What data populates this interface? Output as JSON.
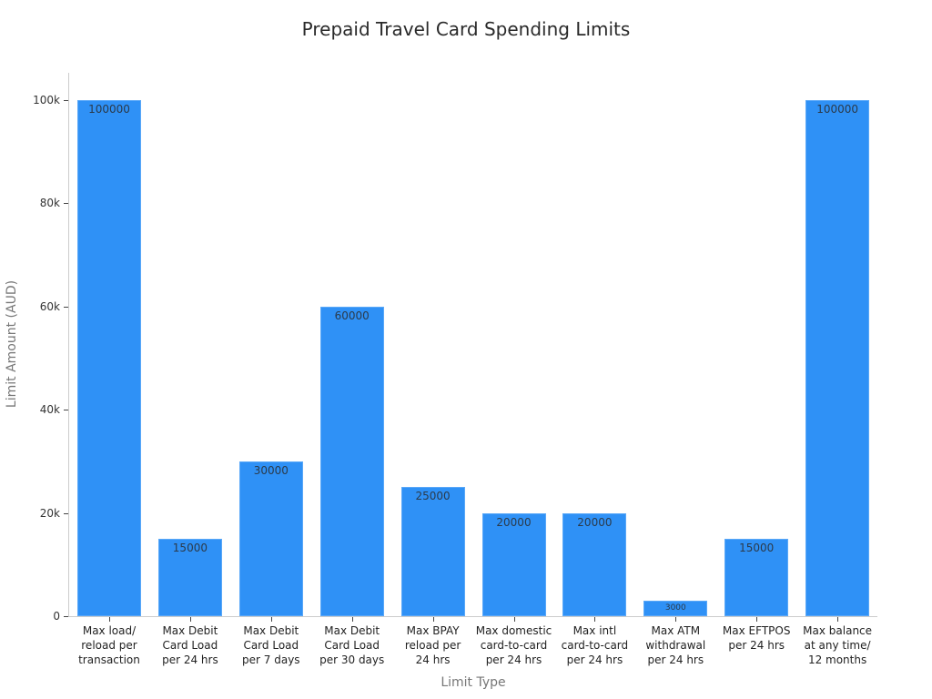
{
  "chart_data": {
    "type": "bar",
    "title": "Prepaid Travel Card Spending Limits",
    "xlabel": "Limit Type",
    "ylabel": "Limit Amount (AUD)",
    "ylim": [
      0,
      105000
    ],
    "yticks": [
      "0",
      "20k",
      "40k",
      "60k",
      "80k",
      "100k"
    ],
    "ytick_values": [
      0,
      20000,
      40000,
      60000,
      80000,
      100000
    ],
    "grid": false,
    "legend": null,
    "bar_color": "#2f91f6",
    "categories": [
      "Max load/\nreload per\ntransaction",
      "Max Debit\nCard Load\nper 24 hrs",
      "Max Debit\nCard Load\nper 7 days",
      "Max Debit\nCard Load\nper 30 days",
      "Max BPAY\nreload per\n24 hrs",
      "Max domestic\ncard-to-card\nper 24 hrs",
      "Max intl\ncard-to-card\nper 24 hrs",
      "Max ATM\nwithdrawal\nper 24 hrs",
      "Max EFTPOS\nper 24 hrs",
      "Max balance\nat any time/\n12 months"
    ],
    "values": [
      100000,
      15000,
      30000,
      60000,
      25000,
      20000,
      20000,
      3000,
      15000,
      100000
    ],
    "data_labels": [
      "100000",
      "15000",
      "30000",
      "60000",
      "25000",
      "20000",
      "20000",
      "3000",
      "15000",
      "100000"
    ]
  }
}
